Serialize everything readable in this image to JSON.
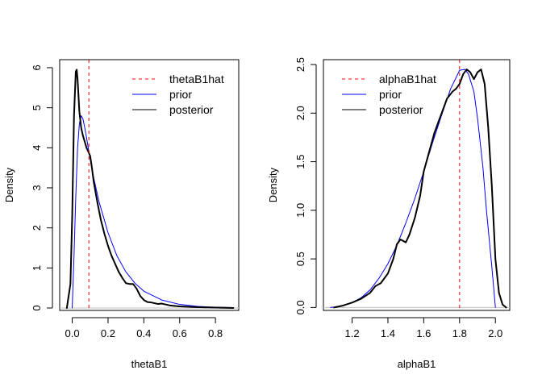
{
  "chart_data": [
    {
      "type": "line",
      "xlabel": "thetaB1",
      "ylabel": "Density",
      "xlim": [
        -0.07,
        0.93
      ],
      "ylim": [
        -0.06,
        6.2
      ],
      "xticks": [
        0.0,
        0.2,
        0.4,
        0.6,
        0.8
      ],
      "xtick_labels": [
        "0.0",
        "0.2",
        "0.4",
        "0.6",
        "0.8"
      ],
      "yticks": [
        0,
        1,
        2,
        3,
        4,
        5,
        6
      ],
      "ytick_labels": [
        "0",
        "1",
        "2",
        "3",
        "4",
        "5",
        "6"
      ],
      "vline": {
        "name": "thetaB1hat",
        "x": 0.093,
        "color": "#ff0000",
        "style": "dashed"
      },
      "legend_position": "top-right",
      "series": [
        {
          "name": "prior",
          "color": "#0000ff",
          "width": 1,
          "x": [
            0.0,
            0.01,
            0.02,
            0.03,
            0.04,
            0.05,
            0.06,
            0.07,
            0.08,
            0.1,
            0.12,
            0.15,
            0.2,
            0.25,
            0.3,
            0.35,
            0.4,
            0.5,
            0.6,
            0.7,
            0.8,
            0.9
          ],
          "y": [
            0.0,
            1.3,
            2.8,
            4.0,
            4.6,
            4.8,
            4.72,
            4.5,
            4.25,
            3.72,
            3.25,
            2.65,
            1.88,
            1.3,
            0.9,
            0.62,
            0.42,
            0.2,
            0.09,
            0.04,
            0.02,
            0.01
          ]
        },
        {
          "name": "posterior",
          "color": "#000000",
          "width": 2,
          "x": [
            -0.03,
            -0.01,
            0.0,
            0.01,
            0.02,
            0.025,
            0.03,
            0.04,
            0.05,
            0.06,
            0.07,
            0.08,
            0.09,
            0.1,
            0.11,
            0.12,
            0.14,
            0.16,
            0.18,
            0.2,
            0.22,
            0.24,
            0.26,
            0.28,
            0.3,
            0.32,
            0.34,
            0.36,
            0.38,
            0.4,
            0.42,
            0.44,
            0.46,
            0.48,
            0.5,
            0.55,
            0.6,
            0.7,
            0.8,
            0.9
          ],
          "y": [
            0.0,
            0.6,
            2.3,
            4.8,
            5.9,
            5.95,
            5.7,
            4.9,
            4.5,
            4.3,
            4.15,
            4.0,
            3.9,
            3.8,
            3.5,
            3.15,
            2.65,
            2.2,
            1.85,
            1.55,
            1.3,
            1.1,
            0.9,
            0.75,
            0.62,
            0.6,
            0.6,
            0.48,
            0.3,
            0.2,
            0.15,
            0.14,
            0.12,
            0.1,
            0.11,
            0.06,
            0.04,
            0.02,
            0.01,
            0.0
          ]
        }
      ]
    },
    {
      "type": "line",
      "xlabel": "alphaB1",
      "ylabel": "Density",
      "xlim": [
        1.04,
        2.08
      ],
      "ylim": [
        -0.03,
        2.55
      ],
      "xticks": [
        1.2,
        1.4,
        1.6,
        1.8,
        2.0
      ],
      "xtick_labels": [
        "1.2",
        "1.4",
        "1.6",
        "1.8",
        "2.0"
      ],
      "yticks": [
        0.0,
        0.5,
        1.0,
        1.5,
        2.0,
        2.5
      ],
      "ytick_labels": [
        "0.0",
        "0.5",
        "1.0",
        "1.5",
        "2.0",
        "2.5"
      ],
      "vline": {
        "name": "alphaB1hat",
        "x": 1.8,
        "color": "#ff0000",
        "style": "dashed"
      },
      "legend_position": "top-left",
      "series": [
        {
          "name": "prior",
          "color": "#0000ff",
          "width": 1,
          "x": [
            1.08,
            1.1,
            1.15,
            1.2,
            1.25,
            1.3,
            1.35,
            1.4,
            1.45,
            1.5,
            1.55,
            1.6,
            1.65,
            1.7,
            1.75,
            1.8,
            1.83,
            1.85,
            1.88,
            1.9,
            1.93,
            1.95,
            1.98,
            2.0
          ],
          "y": [
            0.0,
            0.005,
            0.02,
            0.05,
            0.1,
            0.18,
            0.3,
            0.45,
            0.64,
            0.87,
            1.12,
            1.4,
            1.7,
            1.98,
            2.25,
            2.44,
            2.45,
            2.4,
            2.22,
            1.95,
            1.45,
            1.0,
            0.42,
            0.0
          ]
        },
        {
          "name": "posterior",
          "color": "#000000",
          "width": 2,
          "x": [
            1.1,
            1.15,
            1.2,
            1.25,
            1.3,
            1.33,
            1.36,
            1.4,
            1.43,
            1.45,
            1.47,
            1.5,
            1.52,
            1.55,
            1.58,
            1.6,
            1.63,
            1.66,
            1.7,
            1.73,
            1.76,
            1.78,
            1.8,
            1.82,
            1.84,
            1.86,
            1.88,
            1.9,
            1.92,
            1.94,
            1.96,
            1.98,
            2.0,
            2.02,
            2.04,
            2.06
          ],
          "y": [
            0.0,
            0.02,
            0.05,
            0.09,
            0.15,
            0.22,
            0.25,
            0.35,
            0.5,
            0.65,
            0.7,
            0.67,
            0.75,
            0.92,
            1.15,
            1.4,
            1.6,
            1.8,
            2.0,
            2.15,
            2.22,
            2.25,
            2.3,
            2.4,
            2.45,
            2.42,
            2.35,
            2.42,
            2.45,
            2.3,
            1.85,
            1.25,
            0.5,
            0.15,
            0.03,
            0.0
          ]
        }
      ]
    }
  ]
}
